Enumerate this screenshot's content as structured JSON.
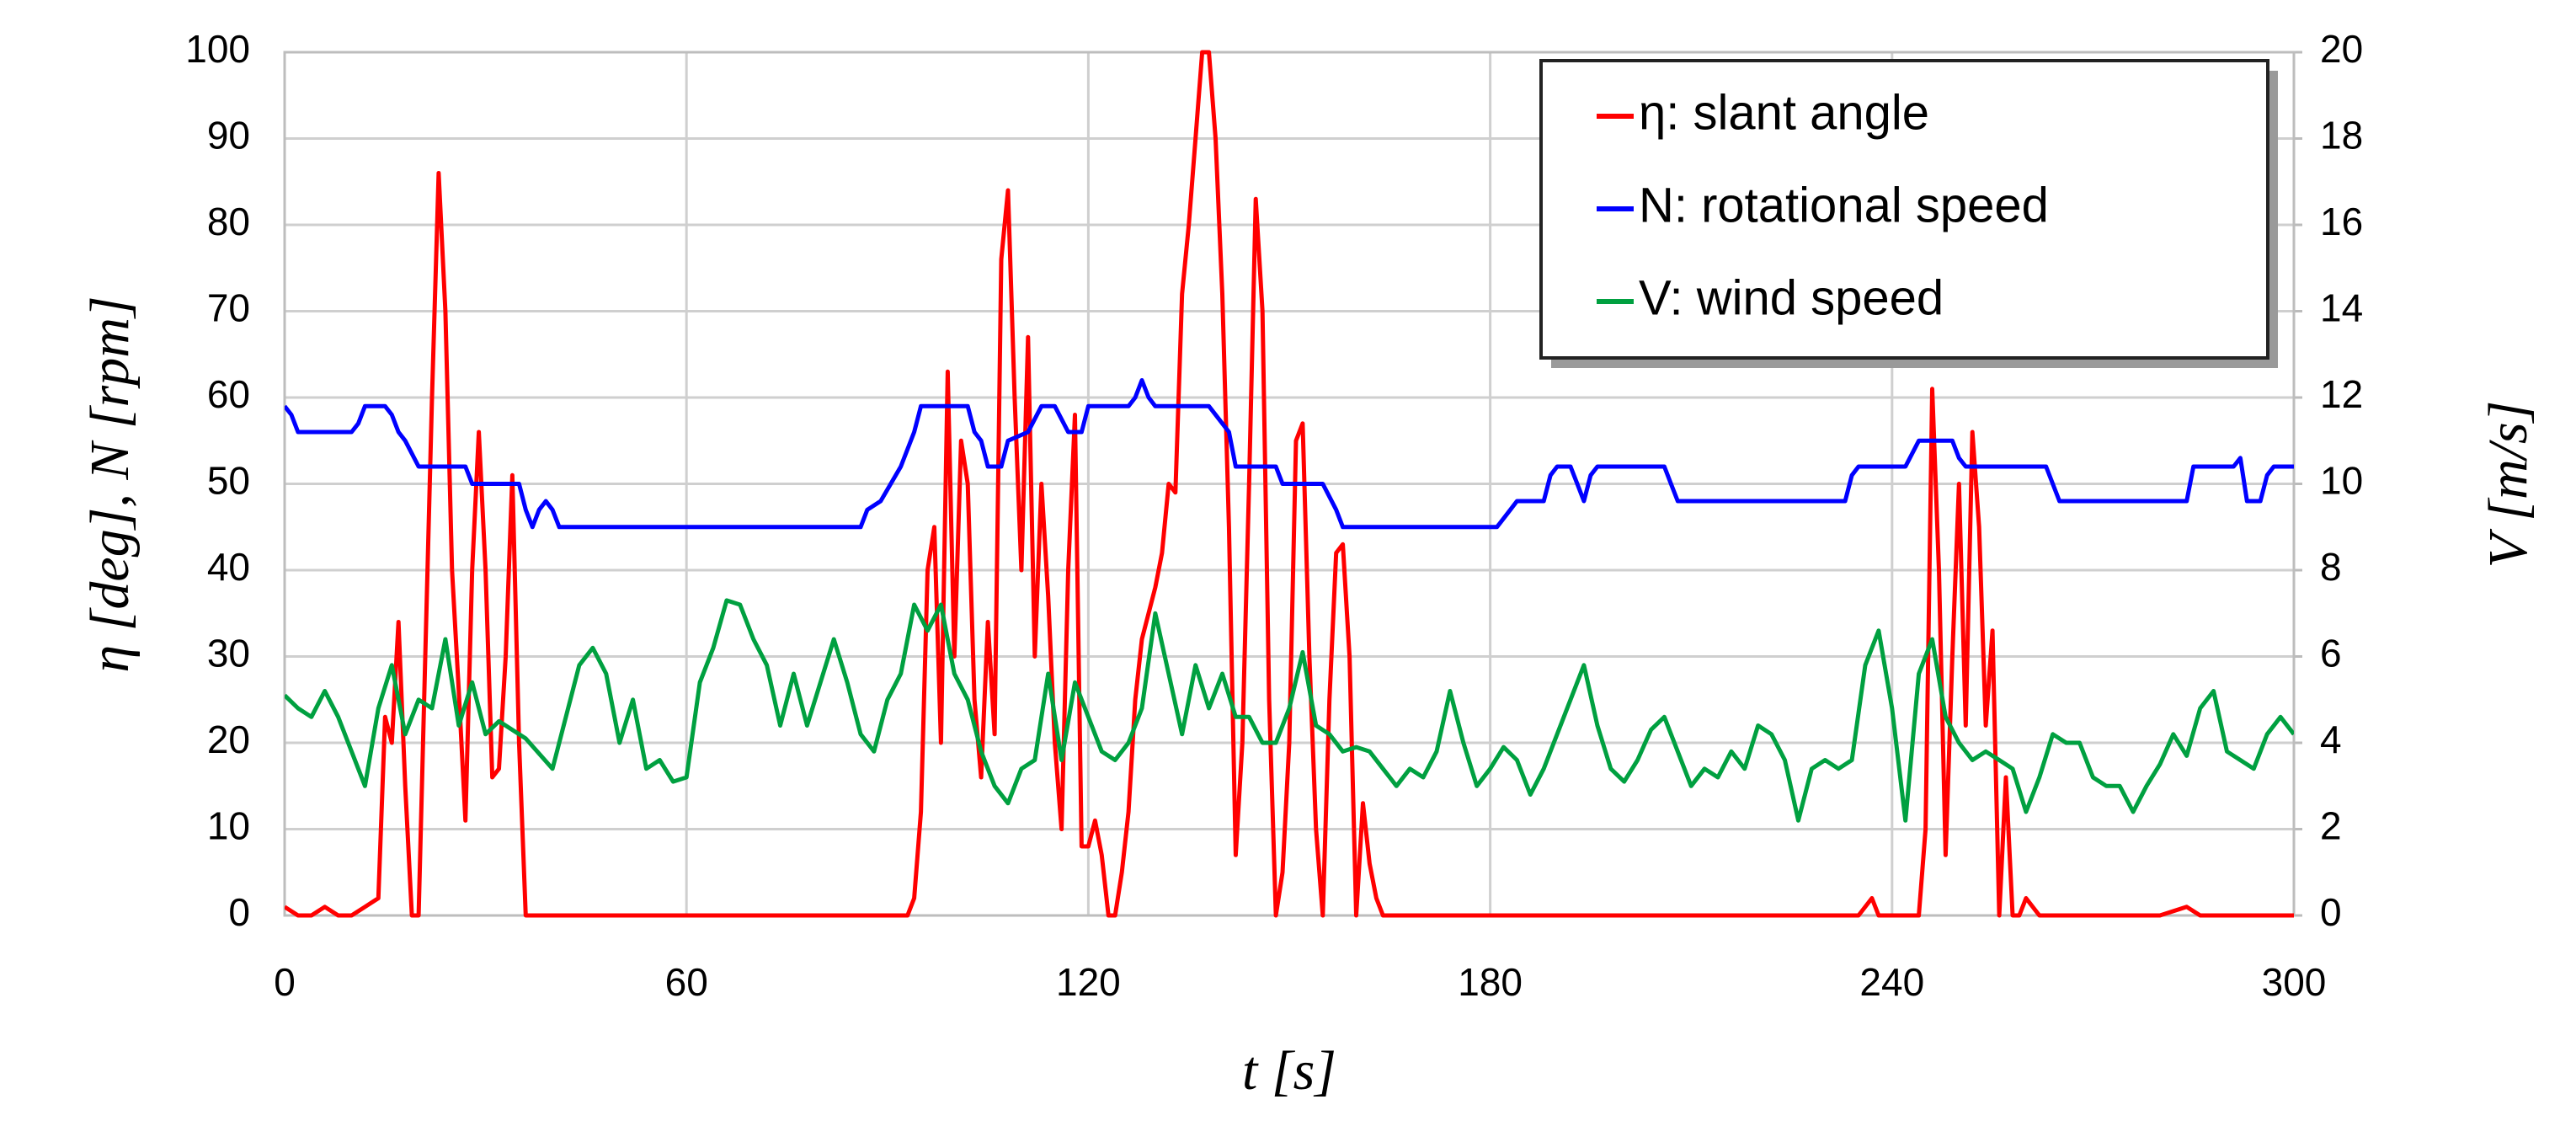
{
  "chart_data": {
    "type": "line",
    "x_label": "t   [s]",
    "y_label": "η [deg],   N [rpm]",
    "y2_label": "V [m/s]",
    "xlim": [
      0,
      300
    ],
    "xticks": [
      0,
      60,
      120,
      180,
      240,
      300
    ],
    "ylim": [
      0,
      100
    ],
    "yticks": [
      0,
      10,
      20,
      30,
      40,
      50,
      60,
      70,
      80,
      90,
      100
    ],
    "y2lim": [
      0,
      20
    ],
    "y2ticks": [
      0,
      2,
      4,
      6,
      8,
      10,
      12,
      14,
      16,
      18,
      20
    ],
    "grid": true,
    "legend": "upper right",
    "series": [
      {
        "name": "η: slant angle",
        "color": "#ff0000",
        "x": [
          0,
          2,
          4,
          6,
          8,
          10,
          12,
          14,
          15,
          16,
          17,
          18,
          19,
          20,
          21,
          22,
          23,
          24,
          25,
          26,
          27,
          28,
          29,
          30,
          31,
          32,
          33,
          34,
          35,
          36,
          40,
          50,
          60,
          70,
          80,
          90,
          93,
          94,
          95,
          96,
          97,
          98,
          99,
          100,
          101,
          102,
          103,
          104,
          105,
          106,
          107,
          108,
          109,
          110,
          111,
          112,
          113,
          114,
          115,
          116,
          117,
          118,
          119,
          120,
          121,
          122,
          123,
          124,
          125,
          126,
          127,
          128,
          130,
          131,
          132,
          133,
          134,
          135,
          136,
          137,
          138,
          139,
          140,
          141,
          142,
          143,
          144,
          145,
          146,
          147,
          148,
          149,
          150,
          151,
          152,
          153,
          154,
          155,
          156,
          157,
          158,
          159,
          160,
          161,
          162,
          163,
          164,
          170,
          180,
          200,
          220,
          235,
          237,
          238,
          244,
          245,
          246,
          247,
          248,
          249,
          250,
          251,
          252,
          253,
          254,
          255,
          256,
          257,
          258,
          259,
          260,
          262,
          280,
          284,
          286,
          300
        ],
        "values": [
          1,
          0,
          0,
          1,
          0,
          0,
          1,
          2,
          23,
          20,
          34,
          15,
          0,
          0,
          30,
          60,
          86,
          70,
          40,
          26,
          11,
          40,
          56,
          40,
          16,
          17,
          30,
          51,
          20,
          0,
          0,
          0,
          0,
          0,
          0,
          0,
          0,
          2,
          12,
          40,
          45,
          20,
          63,
          30,
          55,
          50,
          25,
          16,
          34,
          21,
          76,
          84,
          60,
          40,
          67,
          30,
          50,
          37,
          20,
          10,
          40,
          58,
          8,
          8,
          11,
          7,
          0,
          0,
          5,
          12,
          25,
          32,
          38,
          42,
          50,
          49,
          72,
          80,
          90,
          100,
          100,
          90,
          72,
          45,
          7,
          20,
          50,
          83,
          70,
          25,
          0,
          5,
          20,
          55,
          57,
          30,
          10,
          0,
          25,
          42,
          43,
          30,
          0,
          13,
          6,
          2,
          0,
          0,
          0,
          0,
          0,
          0,
          2,
          0,
          0,
          10,
          61,
          40,
          7,
          30,
          50,
          22,
          56,
          45,
          22,
          33,
          0,
          16,
          0,
          0,
          2,
          0,
          0,
          1,
          0,
          0
        ]
      },
      {
        "name": "N: rotational speed",
        "color": "#0000ff",
        "x": [
          0,
          1,
          2,
          10,
          11,
          12,
          15,
          16,
          17,
          18,
          20,
          27,
          28,
          35,
          36,
          37,
          38,
          39,
          40,
          41,
          42,
          60,
          86,
          87,
          89,
          92,
          94,
          95,
          102,
          103,
          104,
          105,
          107,
          108,
          111,
          113,
          115,
          117,
          119,
          120,
          126,
          127,
          128,
          129,
          130,
          138,
          141,
          142,
          148,
          149,
          155,
          157,
          158,
          181,
          183,
          184,
          188,
          189,
          190,
          192,
          193,
          194,
          195,
          196,
          206,
          207,
          208,
          233,
          234,
          235,
          242,
          244,
          247,
          249,
          250,
          251,
          263,
          265,
          284,
          285,
          291,
          292,
          293,
          295,
          296,
          297,
          300
        ],
        "values": [
          59,
          58,
          56,
          56,
          57,
          59,
          59,
          58,
          56,
          55,
          52,
          52,
          50,
          50,
          47,
          45,
          47,
          48,
          47,
          45,
          45,
          45,
          45,
          47,
          48,
          52,
          56,
          59,
          59,
          56,
          55,
          52,
          52,
          55,
          56,
          59,
          59,
          56,
          56,
          59,
          59,
          60,
          62,
          60,
          59,
          59,
          56,
          52,
          52,
          50,
          50,
          47,
          45,
          45,
          47,
          48,
          48,
          51,
          52,
          52,
          50,
          48,
          51,
          52,
          52,
          50,
          48,
          48,
          51,
          52,
          52,
          55,
          55,
          55,
          53,
          52,
          52,
          48,
          48,
          52,
          52,
          53,
          48,
          48,
          51,
          52,
          52
        ]
      },
      {
        "name": "V: wind speed",
        "color": "#00a040",
        "axis": "y2",
        "x": [
          0,
          2,
          4,
          6,
          8,
          10,
          12,
          14,
          16,
          18,
          20,
          22,
          24,
          26,
          28,
          30,
          32,
          36,
          40,
          44,
          46,
          48,
          50,
          52,
          54,
          56,
          58,
          60,
          62,
          64,
          66,
          68,
          70,
          72,
          74,
          76,
          78,
          80,
          82,
          84,
          86,
          88,
          90,
          92,
          94,
          96,
          98,
          100,
          102,
          104,
          106,
          108,
          110,
          112,
          114,
          116,
          118,
          120,
          122,
          124,
          126,
          128,
          130,
          132,
          134,
          136,
          138,
          140,
          142,
          144,
          146,
          148,
          150,
          152,
          154,
          156,
          158,
          160,
          162,
          164,
          166,
          168,
          170,
          172,
          174,
          176,
          178,
          180,
          182,
          184,
          186,
          188,
          190,
          192,
          194,
          196,
          198,
          200,
          202,
          204,
          206,
          208,
          210,
          212,
          214,
          216,
          218,
          220,
          222,
          224,
          226,
          228,
          230,
          232,
          234,
          236,
          238,
          240,
          242,
          244,
          246,
          248,
          250,
          252,
          254,
          256,
          258,
          260,
          262,
          264,
          266,
          268,
          270,
          272,
          274,
          276,
          278,
          280,
          282,
          284,
          286,
          288,
          290,
          292,
          294,
          296,
          298,
          300
        ],
        "values": [
          5.1,
          4.8,
          4.6,
          5.2,
          4.6,
          3.8,
          3.0,
          4.8,
          5.8,
          4.2,
          5.0,
          4.8,
          6.4,
          4.4,
          5.4,
          4.2,
          4.5,
          4.1,
          3.4,
          5.8,
          6.2,
          5.6,
          4.0,
          5.0,
          3.4,
          3.6,
          3.1,
          3.2,
          5.4,
          6.2,
          7.3,
          7.2,
          6.4,
          5.8,
          4.4,
          5.6,
          4.4,
          5.4,
          6.4,
          5.4,
          4.2,
          3.8,
          5.0,
          5.6,
          7.2,
          6.6,
          7.2,
          5.6,
          5.0,
          3.8,
          3.0,
          2.6,
          3.4,
          3.6,
          5.6,
          3.6,
          5.4,
          4.6,
          3.8,
          3.6,
          4.0,
          4.8,
          7.0,
          5.6,
          4.2,
          5.8,
          4.8,
          5.6,
          4.6,
          4.6,
          4.0,
          4.0,
          4.8,
          6.1,
          4.4,
          4.2,
          3.8,
          3.9,
          3.8,
          3.4,
          3.0,
          3.4,
          3.2,
          3.8,
          5.2,
          4.0,
          3.0,
          3.4,
          3.9,
          3.6,
          2.8,
          3.4,
          4.2,
          5.0,
          5.8,
          4.4,
          3.4,
          3.1,
          3.6,
          4.3,
          4.6,
          3.8,
          3.0,
          3.4,
          3.2,
          3.8,
          3.4,
          4.4,
          4.2,
          3.6,
          2.2,
          3.4,
          3.6,
          3.4,
          3.6,
          5.8,
          6.6,
          4.8,
          2.2,
          5.6,
          6.4,
          4.6,
          4.0,
          3.6,
          3.8,
          3.6,
          3.4,
          2.4,
          3.2,
          4.2,
          4.0,
          4.0,
          3.2,
          3.0,
          3.0,
          2.4,
          3.0,
          3.5,
          4.2,
          3.7,
          4.8,
          5.2,
          3.8,
          3.6,
          3.4,
          4.2,
          4.6,
          4.2
        ]
      }
    ]
  }
}
